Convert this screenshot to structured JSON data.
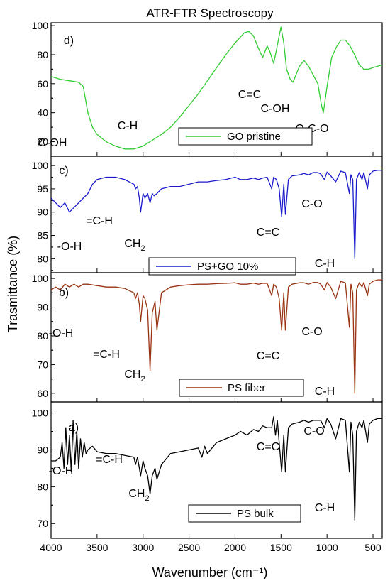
{
  "chart_data": {
    "type": "line",
    "title": "ATR-FTR  Spectroscopy",
    "xlabel": "Wavenumber (cm⁻¹)",
    "ylabel": "Trasmittance (%)",
    "xlim": [
      4000,
      400
    ],
    "x_ticks": [
      4000,
      3500,
      3000,
      2500,
      2000,
      1500,
      1000,
      500
    ],
    "x_tick_labels": [
      "4000",
      "3500",
      "3000",
      "2500",
      "2000",
      "1500",
      "1000",
      "500"
    ],
    "grid": false,
    "legend_position": "bottom-right (each panel)",
    "panels": [
      {
        "label": "d)",
        "ylim": [
          10,
          102
        ],
        "yticks": [
          20,
          40,
          60,
          80,
          100
        ],
        "ytick_labels": [
          "20",
          "40",
          "60",
          "80",
          "100"
        ],
        "series": {
          "name": "GO pristine",
          "color": "#33cc33",
          "x": [
            4000,
            3900,
            3800,
            3700,
            3650,
            3600,
            3550,
            3500,
            3400,
            3300,
            3200,
            3100,
            3000,
            2900,
            2800,
            2700,
            2600,
            2500,
            2400,
            2300,
            2200,
            2100,
            2000,
            1900,
            1850,
            1800,
            1750,
            1700,
            1650,
            1620,
            1580,
            1550,
            1520,
            1500,
            1470,
            1440,
            1400,
            1370,
            1300,
            1250,
            1200,
            1150,
            1100,
            1060,
            1040,
            1000,
            950,
            900,
            850,
            800,
            750,
            700,
            650,
            600,
            550,
            500,
            450,
            400
          ],
          "y": [
            65,
            63,
            62,
            61,
            58,
            40,
            30,
            25,
            20,
            17,
            15,
            15,
            17,
            21,
            25,
            30,
            37,
            45,
            53,
            62,
            71,
            80,
            88,
            95,
            96,
            93,
            85,
            78,
            86,
            82,
            74,
            83,
            93,
            99,
            88,
            70,
            63,
            61,
            72,
            76,
            72,
            66,
            60,
            45,
            40,
            58,
            78,
            85,
            90,
            90,
            86,
            80,
            73,
            70,
            70,
            71,
            72,
            73
          ]
        },
        "annotations": [
          "C-OH",
          "C-H",
          "C=C",
          "C-OH",
          "O-C-O"
        ]
      },
      {
        "label": "c)",
        "ylim": [
          77,
          102
        ],
        "yticks": [
          80,
          85,
          90,
          95,
          100
        ],
        "ytick_labels": [
          "80",
          "85",
          "90",
          "95",
          "100"
        ],
        "series": {
          "name": "PS+GO 10%",
          "color": "#1a1acc",
          "x": [
            4000,
            3950,
            3900,
            3850,
            3800,
            3750,
            3700,
            3650,
            3600,
            3550,
            3500,
            3400,
            3300,
            3200,
            3100,
            3080,
            3060,
            3040,
            3026,
            3000,
            2980,
            2950,
            2924,
            2900,
            2880,
            2849,
            2800,
            2700,
            2600,
            2500,
            2400,
            2300,
            2200,
            2100,
            2000,
            1940,
            1870,
            1800,
            1745,
            1700,
            1650,
            1601,
            1580,
            1550,
            1520,
            1493,
            1470,
            1452,
            1420,
            1380,
            1300,
            1250,
            1200,
            1150,
            1100,
            1069,
            1028,
            1000,
            960,
            906,
            850,
            800,
            757,
            740,
            720,
            698,
            680,
            650,
            620,
            600,
            560,
            540,
            500,
            450,
            400
          ],
          "y": [
            93,
            92,
            91,
            92,
            90,
            91,
            92,
            93,
            94,
            96,
            97,
            97.5,
            97.5,
            97,
            96,
            95,
            95.5,
            93,
            90,
            94,
            93,
            94,
            92,
            94,
            93.5,
            94,
            95,
            95.5,
            95.5,
            96,
            96.5,
            96.5,
            96.8,
            97,
            97.5,
            97,
            97,
            97.3,
            97,
            97.3,
            97.5,
            95,
            97.5,
            97,
            95,
            89,
            96,
            89.5,
            97,
            97.8,
            98,
            98.3,
            98,
            98.5,
            98.5,
            98.2,
            97,
            98.6,
            97.8,
            96.5,
            98.8,
            98.5,
            94,
            98,
            97,
            80,
            97,
            98.5,
            97,
            98.5,
            95,
            98,
            98.8,
            99,
            99
          ]
        },
        "annotations": [
          "-O-H",
          "=C-H",
          "CH",
          "C=C",
          "C-O",
          "C-H"
        ]
      },
      {
        "label": "b)",
        "ylim": [
          57,
          102
        ],
        "yticks": [
          60,
          70,
          80,
          90,
          100
        ],
        "ytick_labels": [
          "60",
          "70",
          "80",
          "90",
          "100"
        ],
        "series": {
          "name": "PS fiber",
          "color": "#993311",
          "x": [
            4000,
            3950,
            3900,
            3850,
            3800,
            3750,
            3700,
            3650,
            3600,
            3500,
            3400,
            3300,
            3200,
            3100,
            3082,
            3060,
            3040,
            3026,
            3000,
            2980,
            2950,
            2924,
            2900,
            2870,
            2849,
            2800,
            2700,
            2600,
            2500,
            2400,
            2300,
            2200,
            2100,
            2000,
            1940,
            1870,
            1800,
            1745,
            1700,
            1650,
            1601,
            1580,
            1550,
            1520,
            1493,
            1470,
            1452,
            1420,
            1380,
            1300,
            1250,
            1200,
            1150,
            1100,
            1069,
            1028,
            1000,
            960,
            906,
            850,
            800,
            757,
            740,
            720,
            698,
            680,
            650,
            620,
            600,
            560,
            540,
            500,
            450,
            400
          ],
          "y": [
            96,
            97,
            96,
            98,
            97,
            98,
            97,
            98,
            98,
            97.5,
            97,
            97,
            96.5,
            95,
            93,
            95,
            91,
            85,
            94,
            93,
            89,
            68,
            88,
            92,
            82,
            95,
            97,
            97.5,
            97.8,
            98,
            98,
            98.2,
            98.3,
            98.5,
            98,
            98,
            98.4,
            98,
            98.3,
            98.3,
            94,
            98,
            97,
            93,
            82,
            95,
            82,
            97,
            98,
            98.5,
            98.5,
            98,
            98.6,
            98.6,
            98,
            96,
            98.6,
            97,
            93,
            99,
            98.5,
            83,
            98,
            95,
            60,
            96,
            98.5,
            97,
            98.6,
            94,
            98,
            99,
            99.5,
            99.5
          ]
        },
        "annotations": [
          "-O-H",
          "=C-H",
          "CH",
          "C=C",
          "C-O",
          "C-H"
        ]
      },
      {
        "label": "a)",
        "ylim": [
          66,
          103
        ],
        "yticks": [
          70,
          80,
          90,
          100
        ],
        "ytick_labels": [
          "70",
          "80",
          "90",
          "100"
        ],
        "series": {
          "name": "PS bulk",
          "color": "#000000",
          "x": [
            4000,
            3950,
            3900,
            3880,
            3860,
            3840,
            3820,
            3800,
            3780,
            3760,
            3740,
            3720,
            3700,
            3680,
            3660,
            3640,
            3620,
            3600,
            3550,
            3500,
            3400,
            3300,
            3200,
            3100,
            3082,
            3060,
            3040,
            3026,
            3000,
            2980,
            2950,
            2924,
            2900,
            2870,
            2849,
            2800,
            2700,
            2600,
            2500,
            2400,
            2360,
            2330,
            2300,
            2200,
            2100,
            2000,
            1940,
            1870,
            1800,
            1745,
            1700,
            1650,
            1601,
            1580,
            1560,
            1540,
            1520,
            1493,
            1470,
            1452,
            1420,
            1380,
            1300,
            1250,
            1200,
            1150,
            1100,
            1069,
            1028,
            1000,
            960,
            906,
            850,
            800,
            757,
            740,
            720,
            698,
            680,
            650,
            620,
            600,
            560,
            540,
            500,
            450,
            400
          ],
          "y": [
            87,
            87,
            88,
            92,
            85,
            96,
            86,
            94,
            84,
            98,
            86,
            95,
            85,
            93,
            88,
            92,
            89,
            90,
            91,
            89.5,
            89,
            89,
            88.5,
            88,
            86,
            88,
            85,
            83,
            87,
            85,
            83,
            78,
            83,
            85,
            82,
            86,
            89,
            89.5,
            90,
            90.5,
            88,
            91,
            89,
            92,
            93,
            94,
            95,
            94,
            95.5,
            95,
            96.5,
            96,
            96,
            99,
            94,
            98,
            92,
            84,
            94,
            84,
            96,
            97,
            97.5,
            98,
            97.5,
            98,
            98,
            98,
            96,
            98.5,
            97,
            93,
            98.5,
            98,
            84,
            97.5,
            94,
            71,
            95,
            97.5,
            96,
            98,
            92,
            97,
            98,
            98.5,
            98.5
          ]
        },
        "annotations": [
          "-O-H",
          "=C-H",
          "CH",
          "C=C",
          "C-O",
          "C-H"
        ]
      }
    ]
  }
}
